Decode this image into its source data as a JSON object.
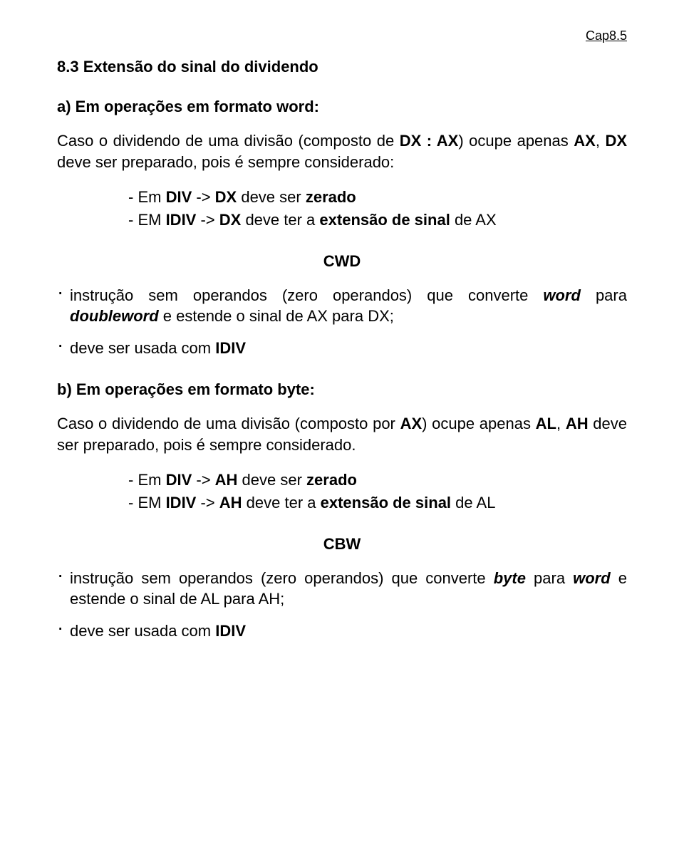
{
  "header": "Cap8.5",
  "section_title_parts": [
    "8.3 Extensão do sinal do dividendo"
  ],
  "sub_a_title": "a) Em operações em formato word:",
  "para_a": {
    "pre": "Caso o dividendo de uma divisão (composto de ",
    "dxax": "DX : AX",
    "mid1": ") ocupe apenas ",
    "ax": "AX",
    "mid2": ", ",
    "dx": "DX",
    "post": " deve ser preparado, pois é sempre considerado:"
  },
  "list_a": {
    "l1_pre": "- Em ",
    "l1_div": "DIV",
    "l1_mid": "  -> ",
    "l1_dx": "DX",
    "l1_post1": " deve ser ",
    "l1_zerado": "zerado",
    "l2_pre": "- EM ",
    "l2_idiv": "IDIV",
    "l2_mid": " -> ",
    "l2_dx": "DX",
    "l2_post1": " deve ter a ",
    "l2_ext": "extensão de sinal",
    "l2_post2": " de AX"
  },
  "cwd": "CWD",
  "cwd_b1": {
    "pre": "instrução sem operandos (zero operandos) que converte ",
    "word": "word",
    "mid": " para ",
    "dword": "doubleword",
    "post": " e estende o sinal de AX para DX;"
  },
  "cwd_b2": {
    "pre": "deve ser usada com ",
    "idiv": "IDIV"
  },
  "sub_b_title": "b) Em operações em formato byte:",
  "para_b": {
    "pre": "Caso o dividendo de uma divisão (composto por ",
    "ax": "AX",
    "mid1": ") ocupe apenas ",
    "al": "AL",
    "mid2": ", ",
    "ah": "AH",
    "post": " deve ser preparado, pois é sempre considerado."
  },
  "list_b": {
    "l1_pre": "- Em ",
    "l1_div": "DIV",
    "l1_mid": "  -> ",
    "l1_ah": "AH",
    "l1_post1": " deve ser ",
    "l1_zerado": "zerado",
    "l2_pre": "- EM ",
    "l2_idiv": "IDIV",
    "l2_mid": " -> ",
    "l2_ah": "AH",
    "l2_post1": " deve ter a ",
    "l2_ext": "extensão de sinal",
    "l2_post2": " de AL"
  },
  "cbw": "CBW",
  "cbw_b1": {
    "pre": "instrução sem operandos (zero operandos) que converte ",
    "byte": "byte",
    "mid": " para ",
    "word": "word",
    "post": " e estende o sinal de AL para AH;"
  },
  "cbw_b2": {
    "pre": "deve ser usada com ",
    "idiv": "IDIV"
  }
}
